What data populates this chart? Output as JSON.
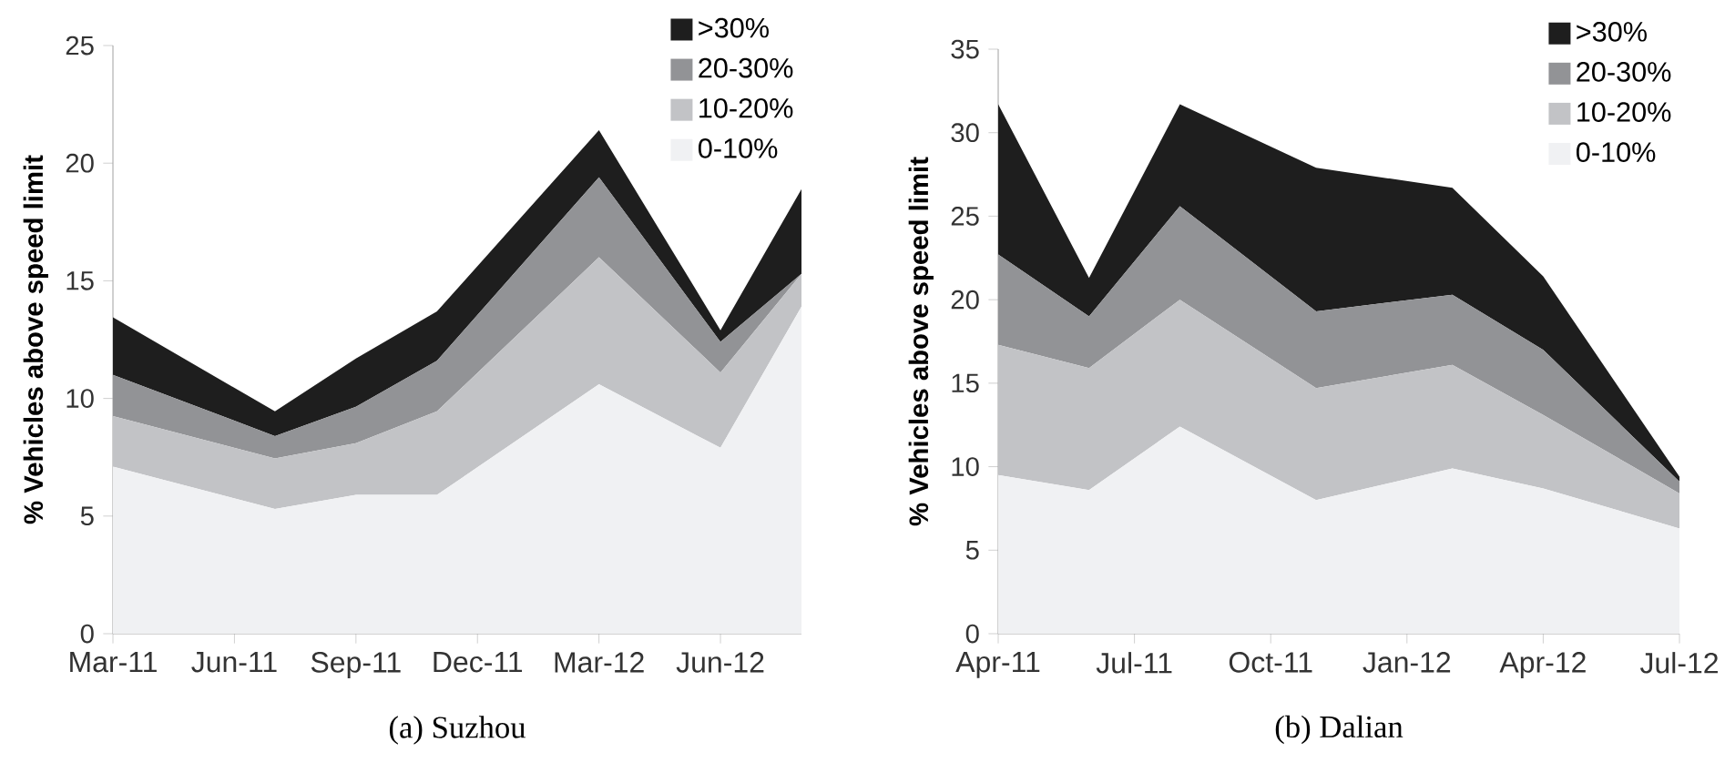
{
  "chart_data": [
    {
      "type": "area",
      "stacked": true,
      "title": "(a) Suzhou",
      "ylabel": "% Vehicles above speed limit",
      "legend": "top right",
      "x": [
        "2011-03",
        "2011-07",
        "2011-09",
        "2011-11",
        "2012-03",
        "2012-06",
        "2012-08"
      ],
      "xlim": [
        "2011-03",
        "2012-08"
      ],
      "xticks": [
        {
          "value": "2011-03",
          "label": "Mar-11"
        },
        {
          "value": "2011-06",
          "label": "Jun-11"
        },
        {
          "value": "2011-09",
          "label": "Sep-11"
        },
        {
          "value": "2011-12",
          "label": "Dec-11"
        },
        {
          "value": "2012-03",
          "label": "Mar-12"
        },
        {
          "value": "2012-06",
          "label": "Jun-12"
        }
      ],
      "ylim": [
        0,
        25
      ],
      "yticks": [
        0,
        5,
        10,
        15,
        20,
        25
      ],
      "series": [
        {
          "name": "0-10%",
          "color": "#f0f1f3",
          "values": [
            7.1,
            5.3,
            5.9,
            5.9,
            10.6,
            7.9,
            13.9
          ]
        },
        {
          "name": "10-20%",
          "color": "#c2c3c6",
          "values": [
            2.15,
            2.15,
            2.2,
            3.55,
            5.4,
            3.2,
            1.4
          ]
        },
        {
          "name": "20-30%",
          "color": "#929396",
          "values": [
            1.75,
            0.95,
            1.55,
            2.15,
            3.4,
            1.3,
            0.0
          ]
        },
        {
          "name": ">30%",
          "color": "#1e1e1e",
          "values": [
            2.45,
            1.05,
            2.05,
            2.1,
            2.0,
            0.5,
            3.6
          ]
        }
      ]
    },
    {
      "type": "area",
      "stacked": true,
      "title": "(b) Dalian",
      "ylabel": "% Vehicles above speed limit",
      "legend": "top right",
      "x": [
        "2011-04",
        "2011-06",
        "2011-08",
        "2011-11",
        "2012-02",
        "2012-04",
        "2012-07"
      ],
      "xlim": [
        "2011-04",
        "2012-07"
      ],
      "xticks": [
        {
          "value": "2011-04",
          "label": "Apr-11"
        },
        {
          "value": "2011-07",
          "label": "Jul-11"
        },
        {
          "value": "2011-10",
          "label": "Oct-11"
        },
        {
          "value": "2012-01",
          "label": "Jan-12"
        },
        {
          "value": "2012-04",
          "label": "Apr-12"
        },
        {
          "value": "2012-07",
          "label": "Jul-12"
        }
      ],
      "ylim": [
        0,
        35
      ],
      "yticks": [
        0,
        5,
        10,
        15,
        20,
        25,
        30,
        35
      ],
      "series": [
        {
          "name": "0-10%",
          "color": "#f0f1f3",
          "values": [
            9.5,
            8.6,
            12.4,
            8.0,
            9.9,
            8.7,
            6.3
          ]
        },
        {
          "name": "10-20%",
          "color": "#c2c3c6",
          "values": [
            7.8,
            7.3,
            7.6,
            6.7,
            6.2,
            4.4,
            2.1
          ]
        },
        {
          "name": "20-30%",
          "color": "#929396",
          "values": [
            5.4,
            3.1,
            5.6,
            4.6,
            4.2,
            3.9,
            0.7
          ]
        },
        {
          "name": ">30%",
          "color": "#1e1e1e",
          "values": [
            9.0,
            2.3,
            6.1,
            8.6,
            6.4,
            4.4,
            0.3
          ]
        }
      ]
    }
  ]
}
